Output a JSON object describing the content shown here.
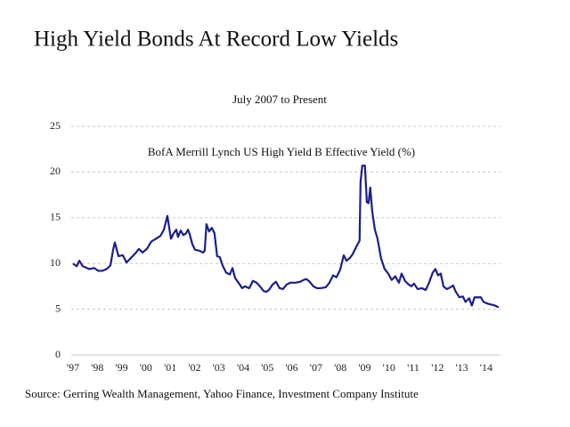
{
  "chart_data": {
    "type": "line",
    "title": "High Yield Bonds At Record Low Yields",
    "subtitle": "July 2007 to Present",
    "source": "Source: Gerring Wealth Management, Yahoo Finance, Investment Company Institute",
    "xlim": [
      1997,
      2014.7
    ],
    "xticks": [
      {
        "value": 1997,
        "label": "'97"
      },
      {
        "value": 1998,
        "label": "'98"
      },
      {
        "value": 1999,
        "label": "'99"
      },
      {
        "value": 2000,
        "label": "'00"
      },
      {
        "value": 2001,
        "label": "'01"
      },
      {
        "value": 2002,
        "label": "'02"
      },
      {
        "value": 2003,
        "label": "'03"
      },
      {
        "value": 2004,
        "label": "'04"
      },
      {
        "value": 2005,
        "label": "'05"
      },
      {
        "value": 2006,
        "label": "'06"
      },
      {
        "value": 2007,
        "label": "'07"
      },
      {
        "value": 2008,
        "label": "'08"
      },
      {
        "value": 2009,
        "label": "'09"
      },
      {
        "value": 2010,
        "label": "'10"
      },
      {
        "value": 2011,
        "label": "'11"
      },
      {
        "value": 2012,
        "label": "'12"
      },
      {
        "value": 2013,
        "label": "'13"
      },
      {
        "value": 2014,
        "label": "'14"
      }
    ],
    "ylim": [
      0,
      25
    ],
    "yticks": [
      0,
      5,
      10,
      15,
      20,
      25
    ],
    "grid": true,
    "x": [
      1997.0,
      1997.15,
      1997.26,
      1997.4,
      1997.66,
      1997.88,
      1998.03,
      1998.21,
      1998.39,
      1998.54,
      1998.65,
      1998.72,
      1998.87,
      1999.05,
      1999.2,
      1999.38,
      1999.56,
      1999.71,
      1999.86,
      2000.04,
      2000.22,
      2000.41,
      2000.59,
      2000.74,
      2000.88,
      2001.03,
      2001.14,
      2001.25,
      2001.32,
      2001.43,
      2001.54,
      2001.65,
      2001.73,
      2001.8,
      2001.91,
      2002.02,
      2002.2,
      2002.35,
      2002.42,
      2002.49,
      2002.6,
      2002.71,
      2002.82,
      2002.93,
      2003.04,
      2003.15,
      2003.3,
      2003.45,
      2003.56,
      2003.67,
      2003.81,
      2003.96,
      2004.07,
      2004.25,
      2004.4,
      2004.55,
      2004.69,
      2004.84,
      2004.95,
      2005.06,
      2005.21,
      2005.35,
      2005.5,
      2005.64,
      2005.79,
      2005.94,
      2006.16,
      2006.34,
      2006.49,
      2006.6,
      2006.74,
      2006.89,
      2007.04,
      2007.18,
      2007.4,
      2007.55,
      2007.7,
      2007.84,
      2007.99,
      2008.14,
      2008.25,
      2008.39,
      2008.5,
      2008.65,
      2008.79,
      2008.83,
      2008.9,
      2009.01,
      2009.09,
      2009.16,
      2009.23,
      2009.31,
      2009.42,
      2009.53,
      2009.67,
      2009.82,
      2009.97,
      2010.11,
      2010.26,
      2010.41,
      2010.52,
      2010.66,
      2010.81,
      2010.92,
      2011.03,
      2011.18,
      2011.36,
      2011.51,
      2011.65,
      2011.8,
      2011.91,
      2012.02,
      2012.13,
      2012.24,
      2012.38,
      2012.53,
      2012.64,
      2012.75,
      2012.9,
      2013.04,
      2013.15,
      2013.3,
      2013.41,
      2013.52,
      2013.63,
      2013.78,
      2013.89,
      2014.07,
      2014.22,
      2014.36,
      2014.51
    ],
    "series": [
      {
        "name": "BofA Merrill Lynch US High Yield B Effective Yield (%)",
        "color": "#1b1f8a",
        "values": [
          10.0,
          9.7,
          10.3,
          9.7,
          9.4,
          9.5,
          9.2,
          9.2,
          9.4,
          9.8,
          11.5,
          12.3,
          10.8,
          10.9,
          10.1,
          10.6,
          11.1,
          11.6,
          11.2,
          11.6,
          12.4,
          12.7,
          13.0,
          13.7,
          15.2,
          12.7,
          13.3,
          13.7,
          12.9,
          13.6,
          13.1,
          13.3,
          13.7,
          13.2,
          12.1,
          11.5,
          11.4,
          11.2,
          11.4,
          14.3,
          13.5,
          13.9,
          13.3,
          10.8,
          10.7,
          9.8,
          9.0,
          8.8,
          9.5,
          8.4,
          7.9,
          7.3,
          7.5,
          7.3,
          8.1,
          7.9,
          7.5,
          7.0,
          6.9,
          7.1,
          7.7,
          8.0,
          7.3,
          7.2,
          7.7,
          7.9,
          7.9,
          8.0,
          8.2,
          8.3,
          8.0,
          7.5,
          7.3,
          7.3,
          7.4,
          7.9,
          8.7,
          8.5,
          9.3,
          10.9,
          10.3,
          10.6,
          11.0,
          11.8,
          12.5,
          18.9,
          20.7,
          20.7,
          16.7,
          16.6,
          18.3,
          15.7,
          13.7,
          12.7,
          10.6,
          9.4,
          8.9,
          8.2,
          8.6,
          7.9,
          8.9,
          8.1,
          7.7,
          7.5,
          7.8,
          7.2,
          7.3,
          7.1,
          7.9,
          9.0,
          9.4,
          8.7,
          8.9,
          7.5,
          7.2,
          7.4,
          7.6,
          6.9,
          6.3,
          6.4,
          5.8,
          6.2,
          5.4,
          6.3,
          6.3,
          6.3,
          5.8,
          5.6,
          5.5,
          5.4,
          5.2
        ]
      }
    ]
  }
}
